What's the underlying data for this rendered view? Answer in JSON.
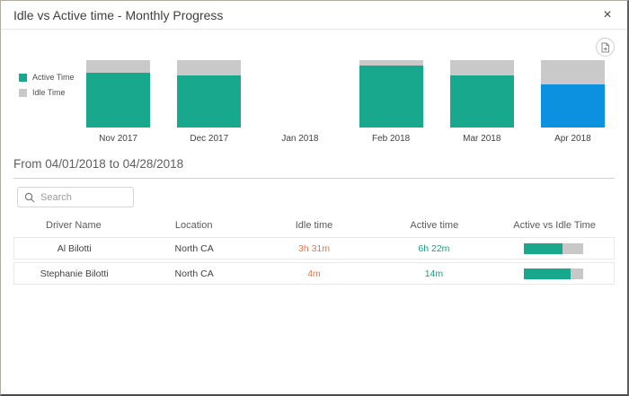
{
  "window": {
    "title": "Idle vs Active time - Monthly Progress",
    "close_glyph": "×"
  },
  "export_button": {
    "icon": "export-report-icon"
  },
  "chart_data": {
    "type": "bar",
    "subtype": "stacked-100-percent",
    "title": "Idle vs Active time - Monthly Progress",
    "categories": [
      "Nov 2017",
      "Dec 2017",
      "Jan 2018",
      "Feb 2018",
      "Mar 2018",
      "Apr 2018"
    ],
    "series": [
      {
        "name": "Active Time",
        "color": "#18a88e",
        "values_pct": [
          81,
          78,
          null,
          92,
          78,
          64
        ]
      },
      {
        "name": "Idle Time",
        "color": "#c9c9c9",
        "values_pct": [
          19,
          22,
          null,
          8,
          22,
          36
        ]
      }
    ],
    "selected_category": "Apr 2018",
    "selected_active_color": "#0c90e0",
    "legend_position": "left",
    "ylim": [
      0,
      100
    ],
    "grid": false
  },
  "period": {
    "label": "From 04/01/2018 to 04/28/2018"
  },
  "search": {
    "placeholder": "Search",
    "icon": "search-icon"
  },
  "table": {
    "columns": [
      "Driver Name",
      "Location",
      "Idle time",
      "Active time",
      "Active vs Idle Time"
    ],
    "rows": [
      {
        "driver_name": "Al Bilotti",
        "location": "North CA",
        "idle_time": "3h 31m",
        "active_time": "6h 22m",
        "active_pct": 64
      },
      {
        "driver_name": "Stephanie Bilotti",
        "location": "North CA",
        "idle_time": "4m",
        "active_time": "14m",
        "active_pct": 78
      }
    ]
  },
  "colors": {
    "active": "#18a88e",
    "idle": "#c9c9c9",
    "selected": "#0c90e0",
    "idle_text": "#e0794c",
    "active_text": "#14a08a",
    "bar_track": "#c8c8c8"
  }
}
